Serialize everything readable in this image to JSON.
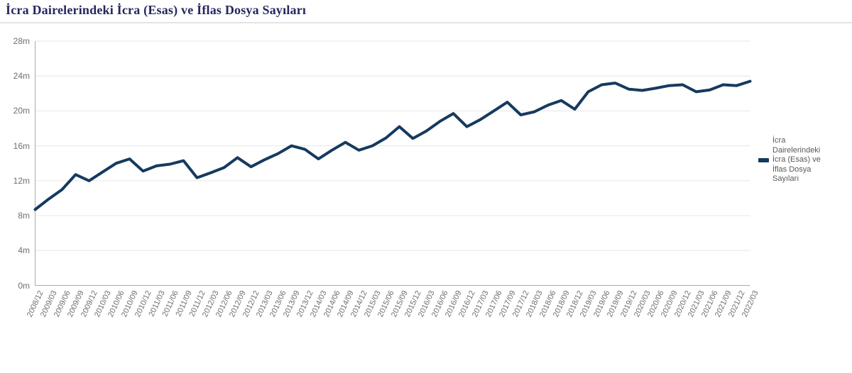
{
  "page": {
    "title": "İcra Dairelerindeki İcra (Esas) ve İflas Dosya Sayıları"
  },
  "legend": {
    "label": "İcra Dairelerindeki İcra (Esas) ve İflas Dosya Sayıları",
    "marker_color": "#163a5f"
  },
  "colors": {
    "line": "#163a5f",
    "gridline": "#e6e6e6",
    "axis_line": "#ababab",
    "tick_text": "#6e6e6e",
    "title_text": "#23275f",
    "legend_text": "#58585a",
    "background": "#ffffff"
  },
  "chart_data": {
    "type": "line",
    "title": "İcra Dairelerindeki İcra (Esas) ve İflas Dosya Sayıları",
    "xlabel": "",
    "ylabel": "",
    "y_unit": "m",
    "ylim_millions": [
      0,
      28
    ],
    "ytick_interval_millions": 4,
    "ytick_labels": [
      "0m",
      "4m",
      "8m",
      "12m",
      "16m",
      "20m",
      "24m",
      "28m"
    ],
    "grid": "horizontal",
    "legend_position": "right",
    "categories": [
      "2008/12",
      "2009/03",
      "2009/06",
      "2009/09",
      "2009/12",
      "2010/03",
      "2010/06",
      "2010/09",
      "2010/12",
      "2011/03",
      "2011/06",
      "2011/09",
      "2011/12",
      "2012/03",
      "2012/06",
      "2012/09",
      "2012/12",
      "2013/03",
      "2013/06",
      "2013/09",
      "2013/12",
      "2014/03",
      "2014/06",
      "2014/09",
      "2014/12",
      "2015/03",
      "2015/06",
      "2015/09",
      "2015/12",
      "2016/03",
      "2016/06",
      "2016/09",
      "2016/12",
      "2017/03",
      "2017/06",
      "2017/09",
      "2017/12",
      "2018/03",
      "2018/06",
      "2018/09",
      "2018/12",
      "2019/03",
      "2019/06",
      "2019/09",
      "2019/12",
      "2020/03",
      "2020/06",
      "2020/09",
      "2020/12",
      "2021/03",
      "2021/06",
      "2021/09",
      "2021/12",
      "2022/03"
    ],
    "series": [
      {
        "name": "İcra Dairelerindeki İcra (Esas) ve İflas Dosya Sayıları",
        "color": "#163a5f",
        "values_millions": [
          8.7,
          9.9,
          11.0,
          12.7,
          12.0,
          13.0,
          14.0,
          14.5,
          13.1,
          13.7,
          13.9,
          14.3,
          12.35,
          12.9,
          13.5,
          14.65,
          13.6,
          14.4,
          15.1,
          16.0,
          15.6,
          14.5,
          15.5,
          16.4,
          15.5,
          16.0,
          16.9,
          18.2,
          16.85,
          17.7,
          18.8,
          19.7,
          18.2,
          19.0,
          20.0,
          21.0,
          19.55,
          19.9,
          20.65,
          21.2,
          20.2,
          22.2,
          23.0,
          23.2,
          22.5,
          22.35,
          22.6,
          22.9,
          23.0,
          22.2,
          22.4,
          23.0,
          22.9,
          23.4
        ]
      }
    ]
  }
}
